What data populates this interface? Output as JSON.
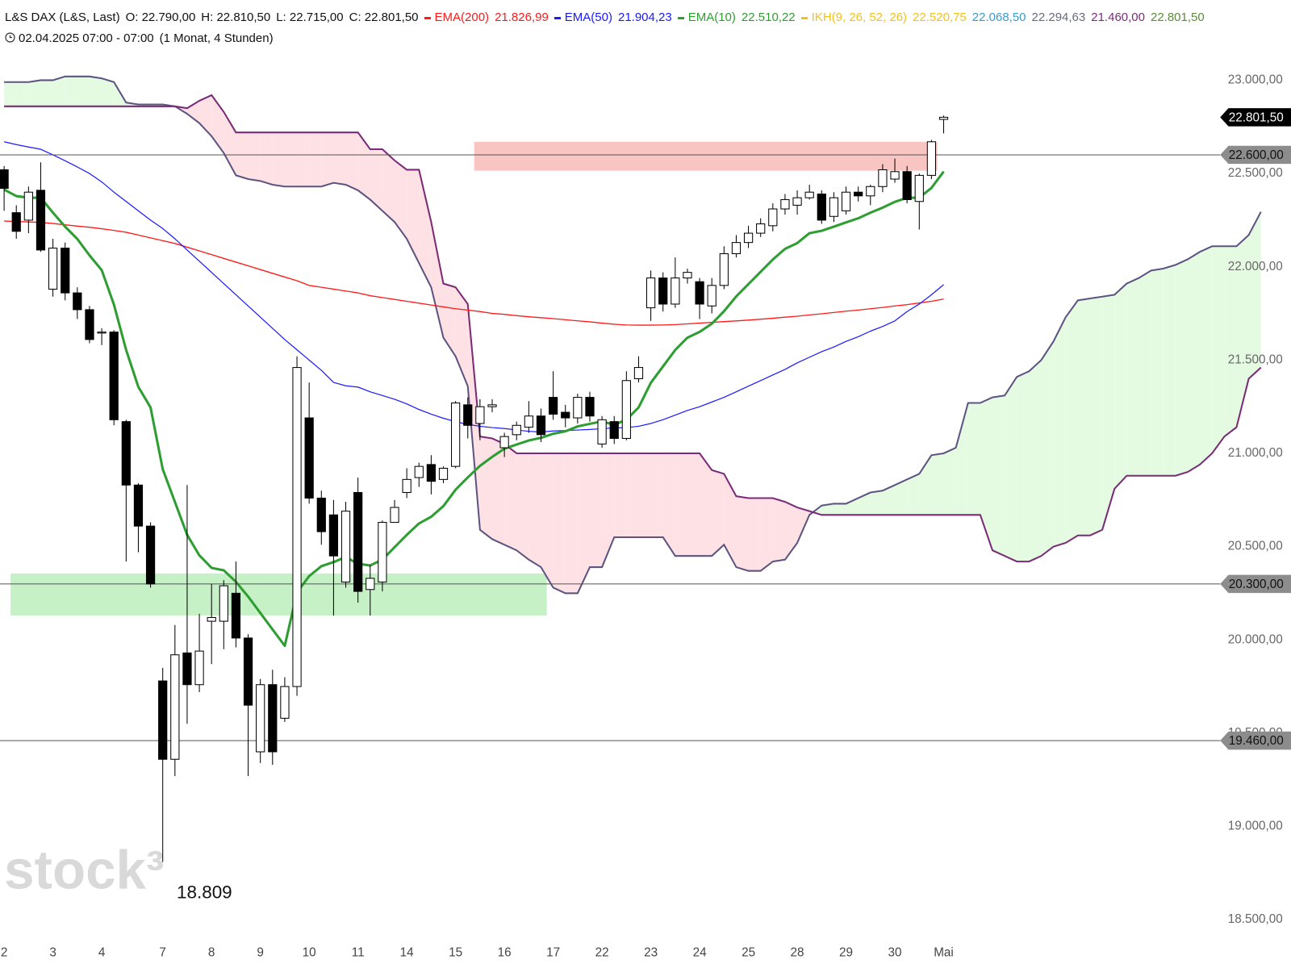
{
  "chart_data": {
    "type": "candlestick",
    "watermark": "stock³",
    "header": {
      "symbol": "L&S DAX (L&S, Last)",
      "ohlc": [
        "O: 22.790,00",
        "H: 22.810,50",
        "L: 22.715,00",
        "C: 22.801,50"
      ],
      "period": "02.04.2025 07:00 - 07:00",
      "resolution": "(1 Monat, 4 Stunden)"
    },
    "categories": [
      "2",
      null,
      null,
      null,
      "3",
      null,
      null,
      null,
      "4",
      null,
      null,
      null,
      null,
      "7",
      null,
      null,
      null,
      "8",
      null,
      null,
      null,
      "9",
      null,
      null,
      null,
      "10",
      null,
      null,
      null,
      "11",
      null,
      null,
      null,
      "14",
      null,
      null,
      null,
      "15",
      null,
      null,
      null,
      "16",
      null,
      null,
      null,
      "17",
      null,
      null,
      null,
      "22",
      null,
      null,
      null,
      "23",
      null,
      null,
      null,
      "24",
      null,
      null,
      null,
      "25",
      null,
      null,
      null,
      "28",
      null,
      null,
      null,
      "29",
      null,
      null,
      null,
      "30",
      null,
      null,
      null,
      "Mai",
      null,
      null,
      null,
      null,
      null,
      null,
      null,
      null,
      null,
      null,
      null,
      null,
      null,
      null,
      null,
      null,
      null,
      null,
      null,
      null,
      null,
      null,
      null,
      null,
      null,
      null
    ],
    "open": [
      22520,
      22290,
      22250,
      22410,
      21880,
      22100,
      21860,
      21770,
      21650,
      21650,
      21170,
      20830,
      20610,
      19780,
      19360,
      19930,
      19760,
      20100,
      20100,
      20250,
      20010,
      19400,
      19760,
      19580,
      19750,
      21190,
      20760,
      20670,
      20310,
      20790,
      20270,
      20310,
      20630,
      20790,
      20870,
      20940,
      20860,
      20930,
      21260,
      21160,
      21250,
      21030,
      21100,
      21140,
      21200,
      21300,
      21220,
      21190,
      21300,
      21050,
      21170,
      21080,
      21400,
      21780,
      21940,
      21800,
      21940,
      21920,
      21790,
      21900,
      22070,
      22130,
      22180,
      22220,
      22310,
      22330,
      22370,
      22390,
      22270,
      22300,
      22400,
      22380,
      22430,
      22470,
      22510,
      22350,
      22490,
      22790,
      null,
      null,
      null,
      null,
      null,
      null,
      null,
      null,
      null,
      null,
      null,
      null,
      null,
      null,
      null,
      null,
      null,
      null,
      null,
      null,
      null,
      null,
      null,
      null,
      null,
      null
    ],
    "high": [
      22540,
      22330,
      22430,
      22560,
      22150,
      22130,
      21890,
      21790,
      21670,
      21660,
      21180,
      20840,
      20630,
      19850,
      20080,
      20830,
      20140,
      20300,
      20320,
      20420,
      20030,
      19790,
      19840,
      19800,
      21520,
      21380,
      20800,
      20750,
      20740,
      20870,
      20400,
      20640,
      20750,
      20920,
      20950,
      20990,
      20930,
      21280,
      21300,
      21290,
      21290,
      21110,
      21170,
      21280,
      21240,
      21440,
      21260,
      21320,
      21330,
      21200,
      21200,
      21440,
      21520,
      21980,
      21970,
      22050,
      21990,
      21940,
      21940,
      22110,
      22170,
      22220,
      22260,
      22340,
      22390,
      22410,
      22440,
      22410,
      22400,
      22430,
      22430,
      22440,
      22550,
      22580,
      22540,
      22500,
      22680,
      22810.5,
      null,
      null,
      null,
      null,
      null,
      null,
      null,
      null,
      null,
      null,
      null,
      null,
      null,
      null,
      null,
      null,
      null,
      null,
      null,
      null,
      null,
      null,
      null,
      null,
      null,
      null
    ],
    "low": [
      22300,
      22150,
      22180,
      22080,
      21840,
      21820,
      21720,
      21590,
      21580,
      21150,
      20420,
      20470,
      20280,
      18809,
      19270,
      19550,
      19720,
      19870,
      19950,
      19960,
      19270,
      19340,
      19330,
      19560,
      19700,
      20730,
      20510,
      20130,
      20280,
      20200,
      20130,
      20260,
      20630,
      20760,
      20820,
      20780,
      20840,
      20920,
      21080,
      21070,
      21220,
      20980,
      21070,
      21110,
      21060,
      21180,
      21140,
      21160,
      21170,
      21030,
      21050,
      21070,
      21380,
      21710,
      21760,
      21780,
      21910,
      21720,
      21750,
      21880,
      22050,
      22100,
      22160,
      22190,
      22280,
      22280,
      22360,
      22230,
      22240,
      22280,
      22350,
      22330,
      22400,
      22450,
      22340,
      22200,
      22470,
      22715,
      null,
      null,
      null,
      null,
      null,
      null,
      null,
      null,
      null,
      null,
      null,
      null,
      null,
      null,
      null,
      null,
      null,
      null,
      null,
      null,
      null,
      null,
      null,
      null,
      null,
      null
    ],
    "close": [
      22420,
      22190,
      22400,
      22090,
      22100,
      21860,
      21770,
      21610,
      21650,
      21180,
      20830,
      20610,
      20300,
      19360,
      19920,
      19760,
      19940,
      20120,
      20290,
      20010,
      19650,
      19760,
      19400,
      19750,
      21460,
      20760,
      20580,
      20450,
      20690,
      20260,
      20330,
      20630,
      20710,
      20860,
      20930,
      20850,
      20920,
      21270,
      21150,
      21250,
      21260,
      21090,
      21150,
      21200,
      21100,
      21210,
      21190,
      21300,
      21200,
      21180,
      21080,
      21390,
      21460,
      21940,
      21800,
      21940,
      21970,
      21800,
      21900,
      22070,
      22130,
      22180,
      22230,
      22310,
      22360,
      22370,
      22400,
      22250,
      22370,
      22400,
      22380,
      22430,
      22520,
      22510,
      22360,
      22490,
      22670,
      22801.5,
      null,
      null,
      null,
      null,
      null,
      null,
      null,
      null,
      null,
      null,
      null,
      null,
      null,
      null,
      null,
      null,
      null,
      null,
      null,
      null,
      null,
      null,
      null,
      null,
      null,
      null
    ],
    "series": [
      {
        "name": "EMA(200)",
        "color": "#ff1a1a",
        "width": 1.3,
        "last_label": "21.826,99",
        "values": [
          22245,
          22243,
          22240,
          22238,
          22232,
          22225,
          22218,
          22212,
          22204,
          22195,
          22185,
          22170,
          22155,
          22140,
          22125,
          22105,
          22085,
          22065,
          22045,
          22025,
          22005,
          21985,
          21965,
          21945,
          21925,
          21900,
          21890,
          21880,
          21870,
          21860,
          21845,
          21835,
          21825,
          21815,
          21805,
          21795,
          21785,
          21775,
          21768,
          21760,
          21750,
          21745,
          21738,
          21732,
          21727,
          21722,
          21716,
          21710,
          21705,
          21698,
          21692,
          21688,
          21687,
          21687,
          21688,
          21690,
          21694,
          21698,
          21702,
          21706,
          21710,
          21714,
          21719,
          21724,
          21730,
          21735,
          21742,
          21748,
          21755,
          21762,
          21768,
          21775,
          21782,
          21790,
          21797,
          21806,
          21815,
          21826.99,
          null,
          null,
          null,
          null,
          null,
          null,
          null,
          null,
          null,
          null,
          null,
          null,
          null,
          null,
          null,
          null,
          null,
          null,
          null,
          null,
          null,
          null,
          null,
          null,
          null,
          null
        ]
      },
      {
        "name": "EMA(50)",
        "color": "#1a1aff",
        "width": 1.2,
        "last_label": "21.904,23",
        "values": [
          22670,
          22655,
          22642,
          22630,
          22600,
          22568,
          22535,
          22500,
          22455,
          22400,
          22350,
          22300,
          22250,
          22205,
          22150,
          22090,
          22030,
          21970,
          21910,
          21850,
          21790,
          21730,
          21670,
          21610,
          21555,
          21500,
          21445,
          21380,
          21362,
          21355,
          21330,
          21310,
          21290,
          21265,
          21235,
          21210,
          21188,
          21170,
          21155,
          21145,
          21138,
          21133,
          21125,
          21118,
          21114,
          21120,
          21122,
          21125,
          21128,
          21132,
          21136,
          21138,
          21145,
          21160,
          21180,
          21205,
          21230,
          21250,
          21275,
          21300,
          21330,
          21360,
          21390,
          21420,
          21450,
          21485,
          21515,
          21545,
          21570,
          21600,
          21625,
          21655,
          21680,
          21710,
          21760,
          21800,
          21850,
          21904.23,
          null,
          null,
          null,
          null,
          null,
          null,
          null,
          null,
          null,
          null,
          null,
          null,
          null,
          null,
          null,
          null,
          null,
          null,
          null,
          null,
          null,
          null,
          null,
          null,
          null,
          null
        ]
      },
      {
        "name": "EMA(10)",
        "color": "#2e9e32",
        "width": 3,
        "last_label": "22.510,22",
        "values": [
          22414,
          22379,
          22370,
          22370,
          22290,
          22215,
          22149,
          22061,
          21982,
          21797,
          21554,
          21356,
          21246,
          20915,
          20739,
          20563,
          20453,
          20386,
          20373,
          20311,
          20232,
          20144,
          20056,
          19968,
          20254,
          20342,
          20395,
          20417,
          20444,
          20408,
          20399,
          20430,
          20497,
          20563,
          20624,
          20660,
          20717,
          20805,
          20871,
          20933,
          20981,
          21025,
          21047,
          21069,
          21083,
          21105,
          21118,
          21144,
          21158,
          21171,
          21153,
          21180,
          21246,
          21378,
          21466,
          21554,
          21620,
          21651,
          21695,
          21762,
          21841,
          21907,
          21973,
          22039,
          22096,
          22127,
          22180,
          22193,
          22215,
          22238,
          22260,
          22290,
          22317,
          22348,
          22370,
          22370,
          22423,
          22510.22,
          null,
          null,
          null,
          null,
          null,
          null,
          null,
          null,
          null,
          null,
          null,
          null,
          null,
          null,
          null,
          null,
          null,
          null,
          null,
          null,
          null,
          null,
          null,
          null,
          null,
          null
        ]
      }
    ],
    "ichimoku": {
      "name": "IKH(9, 26, 52, 26)",
      "color": "#f2c21b",
      "value_labels": [
        {
          "text": "22.520,75",
          "color": "#f2c21b"
        },
        {
          "text": "22.068,50",
          "color": "#3a9ad0"
        },
        {
          "text": "22.294,63",
          "color": "#6a6a80"
        },
        {
          "text": "21.460,00",
          "color": "#7b2d7b"
        },
        {
          "text": "22.801,50",
          "color": "#5d8a3c"
        }
      ],
      "fill_up": "#e4fbe2",
      "fill_down": "#fde1e4",
      "span_a": {
        "color": "#5d5480",
        "values": [
          22990,
          22990,
          22990,
          23000,
          23000,
          23020,
          23020,
          23020,
          23010,
          22990,
          22880,
          22870,
          22870,
          22870,
          22860,
          22820,
          22770,
          22700,
          22610,
          22490,
          22470,
          22460,
          22440,
          22430,
          22430,
          22430,
          22430,
          22450,
          22440,
          22410,
          22360,
          22300,
          22240,
          22150,
          22020,
          21890,
          21620,
          21520,
          21360,
          20590,
          20540,
          20510,
          20480,
          20430,
          20390,
          20280,
          20250,
          20250,
          20390,
          20390,
          20550,
          20550,
          20550,
          20550,
          20550,
          20450,
          20450,
          20450,
          20450,
          20510,
          20390,
          20370,
          20370,
          20420,
          20430,
          20520,
          20670,
          20720,
          20730,
          20730,
          20760,
          20790,
          20800,
          20830,
          20860,
          20890,
          20990,
          21000,
          21030,
          21270,
          21270,
          21300,
          21310,
          21410,
          21440,
          21500,
          21600,
          21730,
          21820,
          21830,
          21840,
          21850,
          21910,
          21940,
          21980,
          21990,
          22010,
          22040,
          22080,
          22110,
          22110,
          22110,
          22170,
          22294.63
        ]
      },
      "span_b": {
        "color": "#7b2a78",
        "values": [
          22860,
          22860,
          22860,
          22860,
          22860,
          22860,
          22860,
          22860,
          22860,
          22860,
          22860,
          22860,
          22860,
          22860,
          22860,
          22850,
          22890,
          22920,
          22830,
          22720,
          22720,
          22720,
          22720,
          22720,
          22720,
          22720,
          22720,
          22720,
          22720,
          22720,
          22630,
          22630,
          22570,
          22520,
          22520,
          22240,
          21910,
          21890,
          21800,
          21090,
          21080,
          21050,
          21000,
          21000,
          21000,
          21000,
          21000,
          21000,
          21000,
          21000,
          21000,
          21000,
          21000,
          21000,
          21000,
          21000,
          21000,
          21000,
          20910,
          20890,
          20770,
          20760,
          20760,
          20760,
          20740,
          20710,
          20690,
          20670,
          20670,
          20670,
          20670,
          20670,
          20670,
          20670,
          20670,
          20670,
          20670,
          20670,
          20670,
          20670,
          20670,
          20480,
          20450,
          20420,
          20420,
          20450,
          20500,
          20520,
          20560,
          20560,
          20590,
          20810,
          20880,
          20880,
          20880,
          20880,
          20880,
          20900,
          20940,
          21000,
          21090,
          21140,
          21400,
          21460
        ]
      }
    },
    "zones": [
      {
        "low": 22515,
        "high": 22670,
        "color": "#f8c2c0"
      },
      {
        "low": 20131,
        "high": 20356,
        "color": "#c3f0c3"
      }
    ],
    "levels": [
      {
        "value": 22600,
        "label": "22.600,00"
      },
      {
        "value": 20300,
        "label": "20.300,00"
      },
      {
        "value": 19460,
        "label": "19.460,00"
      }
    ],
    "last_price": {
      "value": 22801.5,
      "label": "22.801,50"
    },
    "annotations": [
      {
        "text": "18.809",
        "value": 18809
      }
    ],
    "ylim": [
      18400,
      23430
    ],
    "yticks": [
      {
        "value": 18500,
        "label": "18.500,00"
      },
      {
        "value": 19000,
        "label": "19.000,00"
      },
      {
        "value": 19500,
        "label": "19.500,00"
      },
      {
        "value": 20000,
        "label": "20.000,00"
      },
      {
        "value": 20500,
        "label": "20.500,00"
      },
      {
        "value": 21000,
        "label": "21.000,00"
      },
      {
        "value": 21500,
        "label": "21.500,00"
      },
      {
        "value": 22000,
        "label": "22.000,00"
      },
      {
        "value": 22500,
        "label": "22.500,00"
      },
      {
        "value": 23000,
        "label": "23.000,00"
      }
    ],
    "up_color": "#ffffff",
    "down_color": "#000000"
  }
}
